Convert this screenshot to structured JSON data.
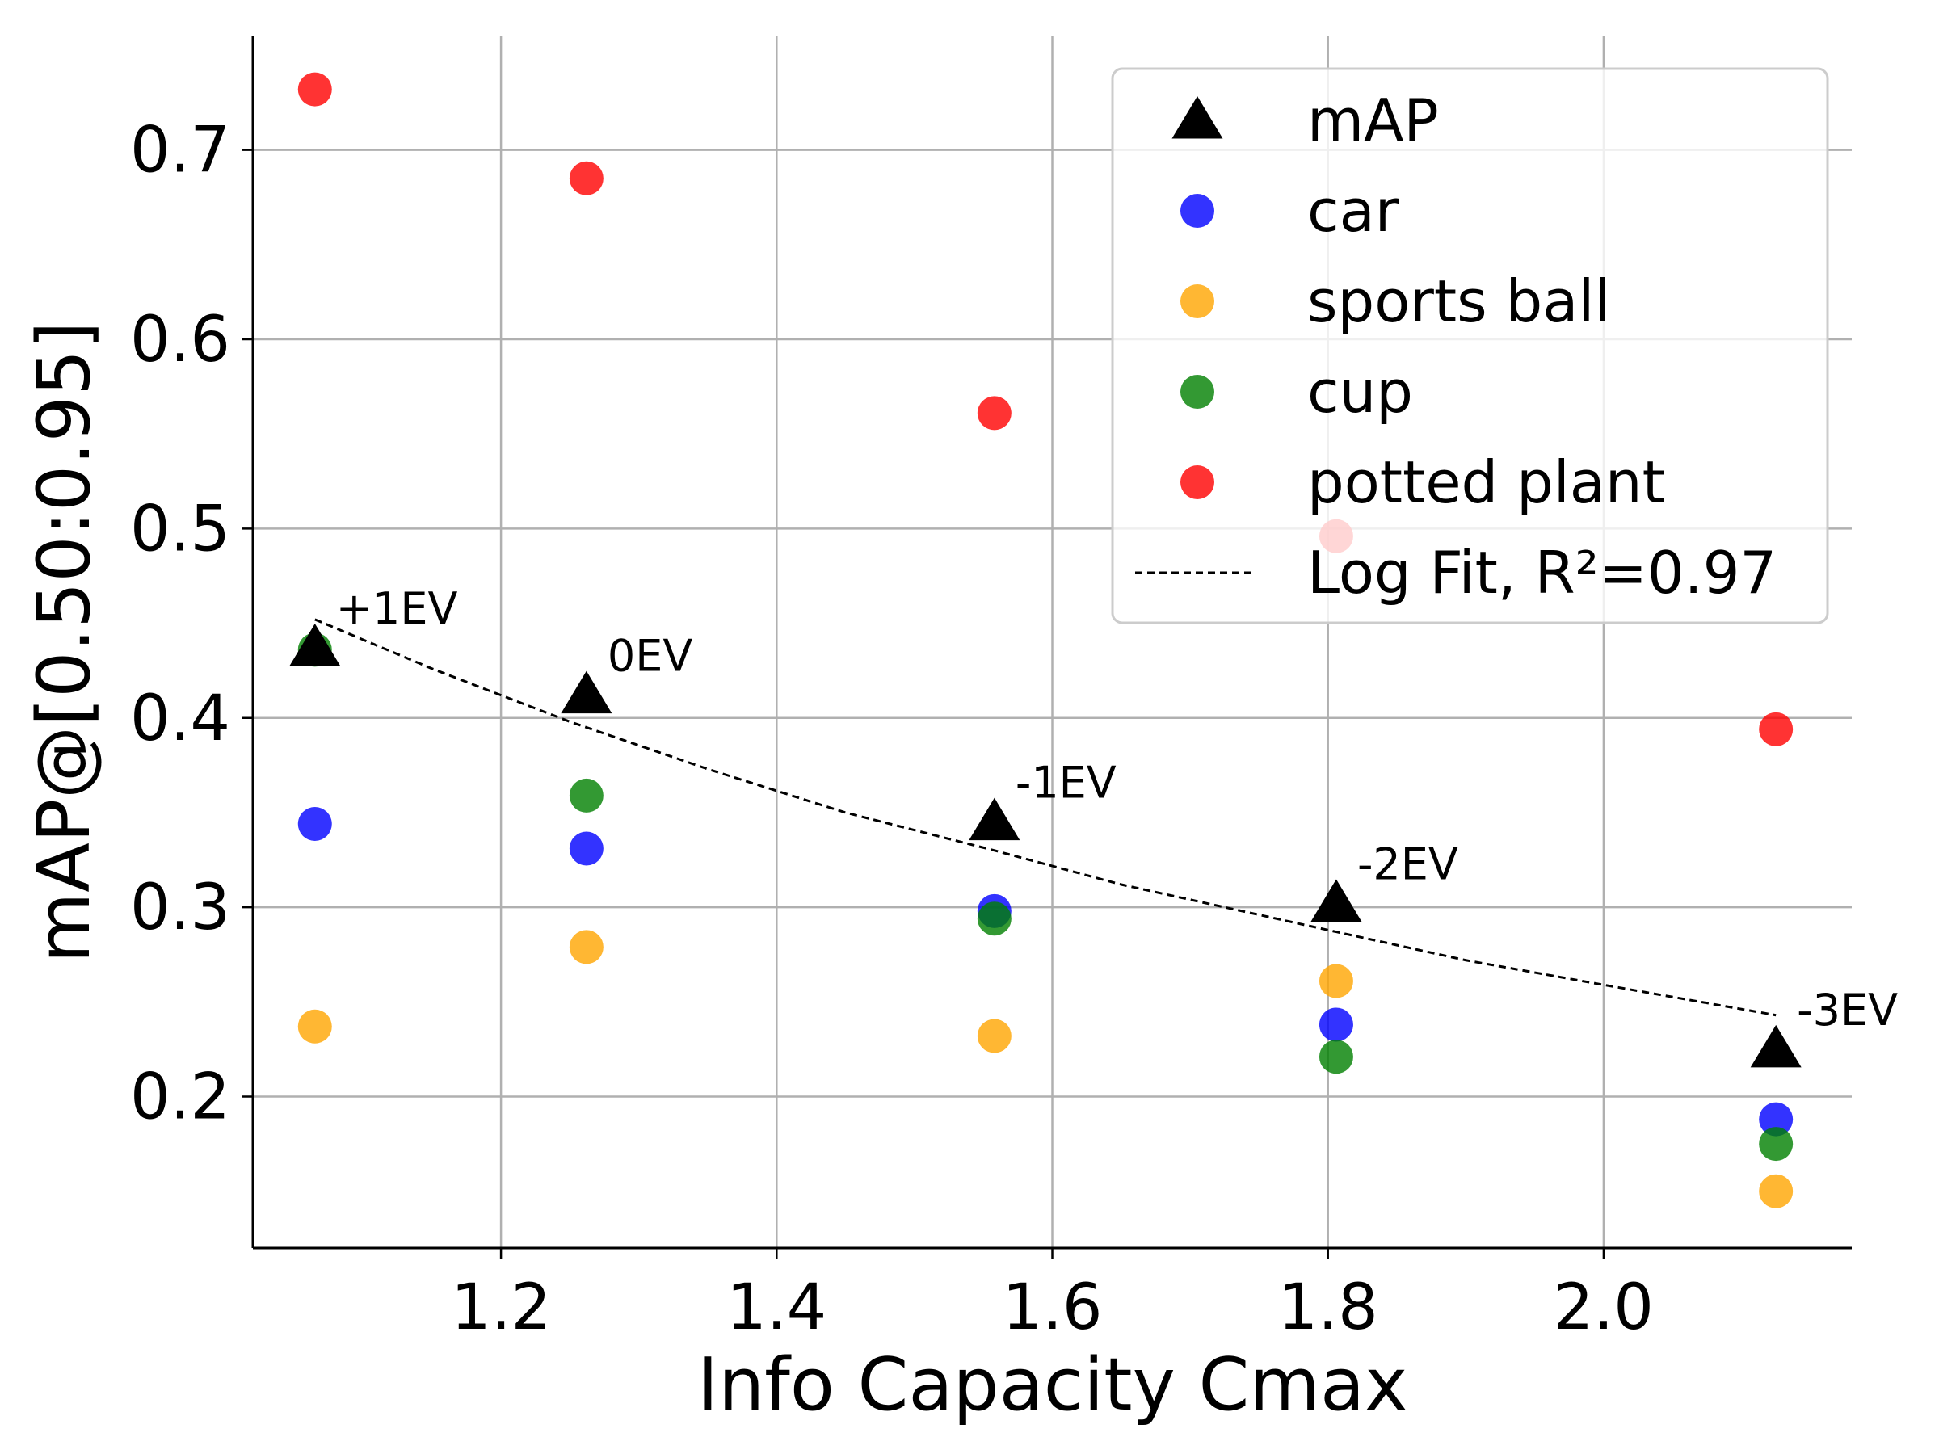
{
  "chart_data": {
    "type": "scatter",
    "title": "",
    "xlabel": "Info Capacity Cmax",
    "ylabel": "mAP@[0.50:0.95]",
    "xlim": [
      1.02,
      2.18
    ],
    "ylim": [
      0.12,
      0.76
    ],
    "xticks": [
      1.2,
      1.4,
      1.6,
      1.8,
      2.0
    ],
    "xtick_labels": [
      "1.2",
      "1.4",
      "1.6",
      "1.8",
      "2.0"
    ],
    "yticks": [
      0.2,
      0.3,
      0.4,
      0.5,
      0.6,
      0.7
    ],
    "ytick_labels": [
      "0.2",
      "0.3",
      "0.4",
      "0.5",
      "0.6",
      "0.7"
    ],
    "grid": true,
    "legend_position": "top-right",
    "x": [
      1.065,
      1.262,
      1.558,
      1.806,
      2.125
    ],
    "series": [
      {
        "name": "mAP",
        "marker": "triangle",
        "color": "#000000",
        "values": [
          0.437,
          0.412,
          0.345,
          0.302,
          0.225
        ]
      },
      {
        "name": "car",
        "marker": "circle",
        "color": "#0000ff",
        "values": [
          0.344,
          0.331,
          0.298,
          0.238,
          0.188
        ]
      },
      {
        "name": "sports ball",
        "marker": "circle",
        "color": "#ffa500",
        "values": [
          0.237,
          0.279,
          0.232,
          0.261,
          0.15
        ]
      },
      {
        "name": "cup",
        "marker": "circle",
        "color": "#008000",
        "values": [
          0.436,
          0.359,
          0.294,
          0.221,
          0.175
        ]
      },
      {
        "name": "potted plant",
        "marker": "circle",
        "color": "#ff0000",
        "values": [
          0.732,
          0.685,
          0.561,
          0.496,
          0.394
        ]
      }
    ],
    "fit": {
      "name": "Log Fit, R²=0.97",
      "style": "dashed",
      "color": "#000000",
      "x": [
        1.065,
        1.15,
        1.25,
        1.35,
        1.45,
        1.558,
        1.65,
        1.75,
        1.806,
        1.9,
        2.0,
        2.125
      ],
      "y": [
        0.452,
        0.426,
        0.398,
        0.373,
        0.35,
        0.33,
        0.312,
        0.296,
        0.287,
        0.272,
        0.259,
        0.243
      ]
    },
    "annotations": [
      {
        "text": "+1EV",
        "x": 1.065,
        "y": 0.437
      },
      {
        "text": "0EV",
        "x": 1.262,
        "y": 0.412
      },
      {
        "text": "-1EV",
        "x": 1.558,
        "y": 0.345
      },
      {
        "text": "-2EV",
        "x": 1.806,
        "y": 0.302
      },
      {
        "text": "-3EV",
        "x": 2.125,
        "y": 0.225
      }
    ]
  }
}
